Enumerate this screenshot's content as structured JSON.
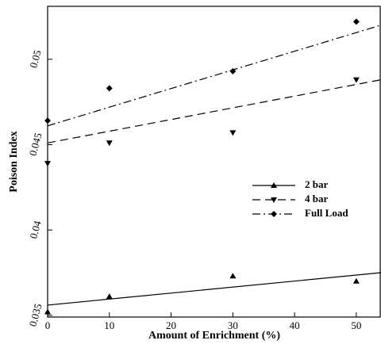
{
  "chart_data": {
    "type": "line",
    "x_label": "Amount of Enrichment (%)",
    "y_label": "Poison Index",
    "x": [
      0,
      10,
      30,
      50
    ],
    "xlim": [
      0,
      54
    ],
    "xticks": [
      0,
      10,
      20,
      30,
      40,
      50
    ],
    "ylim": [
      0.0349,
      0.0531
    ],
    "yticks": [
      0.035,
      0.04,
      0.045,
      0.05
    ],
    "series": [
      {
        "name": "2 bar",
        "color": "#000000",
        "marker": "triangle-up",
        "dash": "solid",
        "values": [
          0.0352,
          0.0361,
          0.0373,
          0.037
        ],
        "trend": {
          "x": [
            0,
            54
          ],
          "values": [
            0.0356,
            0.0375
          ]
        }
      },
      {
        "name": "4 bar",
        "color": "#000000",
        "marker": "triangle-down",
        "dash": "dashed",
        "values": [
          0.0439,
          0.0451,
          0.0457,
          0.0488
        ],
        "trend": {
          "x": [
            0,
            54
          ],
          "values": [
            0.0451,
            0.0488
          ]
        }
      },
      {
        "name": "Full Load",
        "color": "#000000",
        "marker": "diamond",
        "dash": "dashdot",
        "values": [
          0.0464,
          0.0483,
          0.0493,
          0.0522
        ],
        "trend": {
          "x": [
            0,
            54
          ],
          "values": [
            0.0461,
            0.052
          ]
        }
      }
    ]
  }
}
